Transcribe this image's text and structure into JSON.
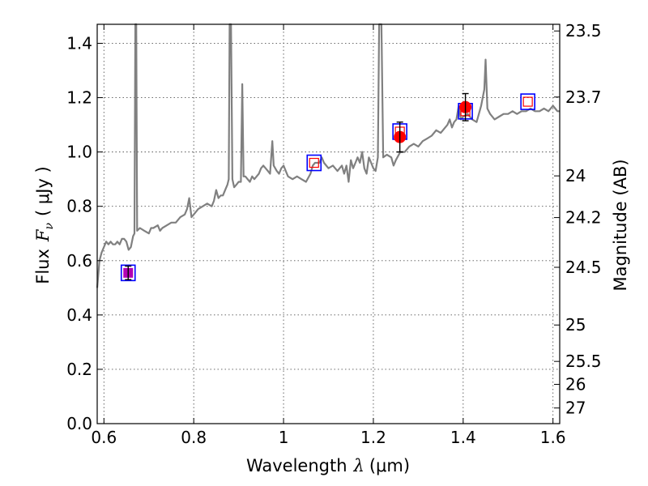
{
  "chart_data": {
    "type": "scatter",
    "xlabel": "Wavelength",
    "xlabel_math": "λ",
    "xlabel_unit": "(μm)",
    "ylabel": "Flux",
    "ylabel_math_main": "F",
    "ylabel_math_sub": "ν",
    "ylabel_unit": "( μJy )",
    "y2label": "Magnitude (AB)",
    "xlim": [
      0.585,
      1.615
    ],
    "ylim": [
      0.0,
      1.47
    ],
    "grid": true,
    "x_ticks": [
      {
        "value": 0.6,
        "label": "0.6"
      },
      {
        "value": 0.8,
        "label": "0.8"
      },
      {
        "value": 1.0,
        "label": "1"
      },
      {
        "value": 1.2,
        "label": "1.2"
      },
      {
        "value": 1.4,
        "label": "1.4"
      },
      {
        "value": 1.6,
        "label": "1.6"
      }
    ],
    "y_ticks": [
      {
        "value": 0.0,
        "label": "0.0"
      },
      {
        "value": 0.2,
        "label": "0.2"
      },
      {
        "value": 0.4,
        "label": "0.4"
      },
      {
        "value": 0.6,
        "label": "0.6"
      },
      {
        "value": 0.8,
        "label": "0.8"
      },
      {
        "value": 1.0,
        "label": "1.0"
      },
      {
        "value": 1.2,
        "label": "1.2"
      },
      {
        "value": 1.4,
        "label": "1.4"
      }
    ],
    "y2_ticks": [
      {
        "mag": 23.5,
        "label": "23.5"
      },
      {
        "mag": 23.7,
        "label": "23.7"
      },
      {
        "mag": 24.0,
        "label": "24"
      },
      {
        "mag": 24.2,
        "label": "24.2"
      },
      {
        "mag": 24.5,
        "label": "24.5"
      },
      {
        "mag": 25.0,
        "label": "25"
      },
      {
        "mag": 25.5,
        "label": "25.5"
      },
      {
        "mag": 26.0,
        "label": "26"
      },
      {
        "mag": 27.0,
        "label": "27"
      }
    ],
    "colors": {
      "model": "#808080",
      "observed": "#ff0000",
      "model_band": "#ff0000",
      "box": "#0000ff",
      "errorbar": "#000000",
      "violet": "#b300b3",
      "grid": "#555555"
    },
    "series": [
      {
        "kind": "model-spectrum",
        "points": [
          [
            0.585,
            0.5
          ],
          [
            0.59,
            0.6
          ],
          [
            0.595,
            0.63
          ],
          [
            0.6,
            0.65
          ],
          [
            0.605,
            0.67
          ],
          [
            0.61,
            0.66
          ],
          [
            0.615,
            0.67
          ],
          [
            0.62,
            0.66
          ],
          [
            0.625,
            0.66
          ],
          [
            0.63,
            0.67
          ],
          [
            0.635,
            0.66
          ],
          [
            0.64,
            0.68
          ],
          [
            0.645,
            0.68
          ],
          [
            0.65,
            0.67
          ],
          [
            0.655,
            0.64
          ],
          [
            0.66,
            0.65
          ],
          [
            0.665,
            0.69
          ],
          [
            0.668,
            0.7
          ],
          [
            0.67,
            1.47
          ],
          [
            0.672,
            1.47
          ],
          [
            0.674,
            0.71
          ],
          [
            0.68,
            0.72
          ],
          [
            0.69,
            0.71
          ],
          [
            0.7,
            0.7
          ],
          [
            0.705,
            0.72
          ],
          [
            0.71,
            0.72
          ],
          [
            0.72,
            0.73
          ],
          [
            0.725,
            0.71
          ],
          [
            0.73,
            0.72
          ],
          [
            0.74,
            0.73
          ],
          [
            0.75,
            0.74
          ],
          [
            0.76,
            0.74
          ],
          [
            0.77,
            0.76
          ],
          [
            0.78,
            0.77
          ],
          [
            0.785,
            0.79
          ],
          [
            0.79,
            0.83
          ],
          [
            0.795,
            0.76
          ],
          [
            0.8,
            0.77
          ],
          [
            0.81,
            0.79
          ],
          [
            0.82,
            0.8
          ],
          [
            0.83,
            0.81
          ],
          [
            0.84,
            0.8
          ],
          [
            0.845,
            0.82
          ],
          [
            0.85,
            0.86
          ],
          [
            0.855,
            0.83
          ],
          [
            0.86,
            0.84
          ],
          [
            0.865,
            0.84
          ],
          [
            0.87,
            0.86
          ],
          [
            0.875,
            0.88
          ],
          [
            0.878,
            0.9
          ],
          [
            0.88,
            1.47
          ],
          [
            0.883,
            1.47
          ],
          [
            0.886,
            0.9
          ],
          [
            0.89,
            0.87
          ],
          [
            0.895,
            0.88
          ],
          [
            0.9,
            0.89
          ],
          [
            0.905,
            0.89
          ],
          [
            0.908,
            1.25
          ],
          [
            0.911,
            0.91
          ],
          [
            0.915,
            0.91
          ],
          [
            0.92,
            0.9
          ],
          [
            0.925,
            0.89
          ],
          [
            0.93,
            0.91
          ],
          [
            0.935,
            0.9
          ],
          [
            0.94,
            0.91
          ],
          [
            0.945,
            0.92
          ],
          [
            0.95,
            0.94
          ],
          [
            0.955,
            0.95
          ],
          [
            0.96,
            0.94
          ],
          [
            0.965,
            0.93
          ],
          [
            0.97,
            0.92
          ],
          [
            0.975,
            1.04
          ],
          [
            0.978,
            0.95
          ],
          [
            0.985,
            0.93
          ],
          [
            0.99,
            0.92
          ],
          [
            0.995,
            0.94
          ],
          [
            1.0,
            0.95
          ],
          [
            1.005,
            0.93
          ],
          [
            1.01,
            0.91
          ],
          [
            1.02,
            0.9
          ],
          [
            1.03,
            0.91
          ],
          [
            1.04,
            0.9
          ],
          [
            1.05,
            0.89
          ],
          [
            1.06,
            0.92
          ],
          [
            1.065,
            0.95
          ],
          [
            1.07,
            0.96
          ],
          [
            1.08,
            0.96
          ],
          [
            1.085,
            0.98
          ],
          [
            1.09,
            0.96
          ],
          [
            1.1,
            0.94
          ],
          [
            1.11,
            0.95
          ],
          [
            1.12,
            0.93
          ],
          [
            1.13,
            0.95
          ],
          [
            1.135,
            0.92
          ],
          [
            1.14,
            0.95
          ],
          [
            1.145,
            0.89
          ],
          [
            1.15,
            0.97
          ],
          [
            1.155,
            0.94
          ],
          [
            1.16,
            0.96
          ],
          [
            1.165,
            0.98
          ],
          [
            1.17,
            0.96
          ],
          [
            1.175,
            1.0
          ],
          [
            1.18,
            0.94
          ],
          [
            1.185,
            0.92
          ],
          [
            1.19,
            0.98
          ],
          [
            1.195,
            0.96
          ],
          [
            1.2,
            0.94
          ],
          [
            1.205,
            0.93
          ],
          [
            1.21,
            0.98
          ],
          [
            1.213,
            1.47
          ],
          [
            1.218,
            1.47
          ],
          [
            1.222,
            0.98
          ],
          [
            1.23,
            0.99
          ],
          [
            1.24,
            0.98
          ],
          [
            1.245,
            0.95
          ],
          [
            1.25,
            0.97
          ],
          [
            1.26,
            1.0
          ],
          [
            1.27,
            1.0
          ],
          [
            1.28,
            1.02
          ],
          [
            1.29,
            1.03
          ],
          [
            1.3,
            1.02
          ],
          [
            1.31,
            1.04
          ],
          [
            1.32,
            1.05
          ],
          [
            1.33,
            1.06
          ],
          [
            1.34,
            1.08
          ],
          [
            1.35,
            1.07
          ],
          [
            1.36,
            1.09
          ],
          [
            1.365,
            1.1
          ],
          [
            1.37,
            1.12
          ],
          [
            1.375,
            1.09
          ],
          [
            1.38,
            1.11
          ],
          [
            1.385,
            1.12
          ],
          [
            1.39,
            1.17
          ],
          [
            1.395,
            1.12
          ],
          [
            1.4,
            1.13
          ],
          [
            1.41,
            1.14
          ],
          [
            1.42,
            1.12
          ],
          [
            1.43,
            1.11
          ],
          [
            1.435,
            1.14
          ],
          [
            1.44,
            1.17
          ],
          [
            1.447,
            1.23
          ],
          [
            1.45,
            1.34
          ],
          [
            1.454,
            1.16
          ],
          [
            1.46,
            1.14
          ],
          [
            1.47,
            1.12
          ],
          [
            1.48,
            1.13
          ],
          [
            1.49,
            1.14
          ],
          [
            1.5,
            1.14
          ],
          [
            1.51,
            1.15
          ],
          [
            1.52,
            1.14
          ],
          [
            1.53,
            1.15
          ],
          [
            1.54,
            1.15
          ],
          [
            1.55,
            1.16
          ],
          [
            1.56,
            1.15
          ],
          [
            1.57,
            1.15
          ],
          [
            1.58,
            1.16
          ],
          [
            1.59,
            1.15
          ],
          [
            1.6,
            1.17
          ],
          [
            1.605,
            1.16
          ],
          [
            1.61,
            1.15
          ],
          [
            1.615,
            1.15
          ]
        ]
      },
      {
        "kind": "model-band-flux",
        "marker": "open-square",
        "points": [
          {
            "x": 0.654,
            "y": 0.555
          },
          {
            "x": 1.068,
            "y": 0.96
          },
          {
            "x": 1.259,
            "y": 1.075
          },
          {
            "x": 1.405,
            "y": 1.15
          },
          {
            "x": 1.544,
            "y": 1.185
          }
        ]
      },
      {
        "kind": "observed-flux",
        "marker": "filled-circle",
        "points": [
          {
            "x": 0.654,
            "y": 0.555,
            "yerr": 0.025
          },
          {
            "x": 1.259,
            "y": 1.055,
            "yerr": 0.055
          },
          {
            "x": 1.405,
            "y": 1.165,
            "yerr": 0.05
          }
        ]
      }
    ]
  }
}
